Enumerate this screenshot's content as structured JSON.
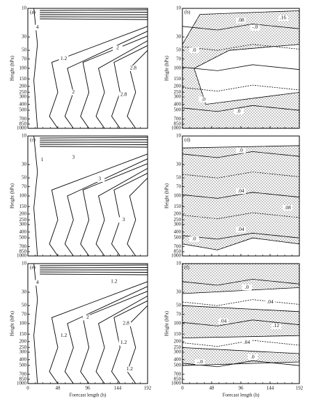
{
  "chart_data": [
    {
      "type": "contour",
      "panel": "(a)",
      "ylabel": "Height (hPa)",
      "shading": false,
      "xlim": [
        0,
        192
      ],
      "xticks": [
        0,
        48,
        96,
        144,
        192
      ],
      "ylim": [
        1000,
        10
      ],
      "log_y": true,
      "yticks": [
        10,
        30,
        50,
        70,
        100,
        150,
        200,
        250,
        300,
        400,
        500,
        700,
        850,
        1000
      ],
      "contour_labels": [
        {
          "value": 4,
          "label": "4"
        },
        {
          "value": 1.2,
          "label": "1.2"
        },
        {
          "value": 2,
          "label": "2"
        },
        {
          "value": 2.8,
          "label": "2.8"
        },
        {
          "value": 2,
          "label": "2"
        },
        {
          "value": 2.8,
          "label": "2.8"
        }
      ]
    },
    {
      "type": "contour",
      "panel": "(b)",
      "ylabel": "Height (hPa)",
      "shading": true,
      "xlim": [
        0,
        192
      ],
      "xticks": [
        0,
        48,
        96,
        144,
        192
      ],
      "ylim": [
        1000,
        10
      ],
      "log_y": true,
      "yticks": [
        10,
        30,
        50,
        70,
        100,
        150,
        200,
        250,
        300,
        400,
        500,
        700,
        850,
        1000
      ],
      "contour_labels": [
        {
          "value": 0.16,
          "label": ".16"
        },
        {
          "value": 0.08,
          "label": ".08"
        },
        {
          "value": 0,
          "label": "-.0"
        },
        {
          "value": 0,
          "label": ".0"
        },
        {
          "value": 0,
          "label": ".0"
        },
        {
          "value": 0,
          "label": ".0"
        }
      ]
    },
    {
      "type": "contour",
      "panel": "(c)",
      "ylabel": "Height (hPa)",
      "shading": false,
      "xlim": [
        0,
        192
      ],
      "xticks": [
        0,
        48,
        96,
        144,
        192
      ],
      "ylim": [
        1000,
        10
      ],
      "log_y": true,
      "yticks": [
        10,
        30,
        50,
        70,
        100,
        150,
        200,
        250,
        300,
        400,
        500,
        700,
        850,
        1000
      ],
      "contour_labels": [
        {
          "value": 1,
          "label": "1"
        },
        {
          "value": 3,
          "label": "3"
        },
        {
          "value": 3,
          "label": "3"
        },
        {
          "value": 3,
          "label": "3"
        }
      ]
    },
    {
      "type": "contour",
      "panel": "(d)",
      "ylabel": "Height (hPa)",
      "shading": true,
      "xlim": [
        0,
        192
      ],
      "xticks": [
        0,
        48,
        96,
        144,
        192
      ],
      "ylim": [
        1000,
        10
      ],
      "log_y": true,
      "yticks": [
        10,
        30,
        50,
        70,
        100,
        150,
        200,
        250,
        300,
        400,
        500,
        700,
        850,
        1000
      ],
      "contour_labels": [
        {
          "value": 0,
          "label": ".0"
        },
        {
          "value": 0.04,
          "label": ".04"
        },
        {
          "value": 0.08,
          "label": ".08"
        },
        {
          "value": 0.04,
          "label": ".04"
        },
        {
          "value": 0,
          "label": ".0"
        }
      ]
    },
    {
      "type": "contour",
      "panel": "(e)",
      "ylabel": "Height (hPa)",
      "xlabel": "Forecast length (h)",
      "shading": false,
      "xlim": [
        0,
        192
      ],
      "xticks": [
        0,
        48,
        96,
        144,
        192
      ],
      "ylim": [
        1000,
        10
      ],
      "log_y": true,
      "yticks": [
        10,
        30,
        50,
        70,
        100,
        150,
        200,
        250,
        300,
        400,
        500,
        700,
        850,
        1000
      ],
      "contour_labels": [
        {
          "value": 4,
          "label": "4"
        },
        {
          "value": 1.2,
          "label": "1.2"
        },
        {
          "value": 2,
          "label": "2"
        },
        {
          "value": 2.8,
          "label": "2.8"
        },
        {
          "value": 1.2,
          "label": "1.2"
        },
        {
          "value": 1.2,
          "label": "1.2"
        },
        {
          "value": 1.2,
          "label": "1.2"
        }
      ]
    },
    {
      "type": "contour",
      "panel": "(f)",
      "ylabel": "Height (hPa)",
      "xlabel": "Forecast length (h)",
      "shading": true,
      "xlim": [
        0,
        192
      ],
      "xticks": [
        0,
        48,
        96,
        144,
        192
      ],
      "ylim": [
        1000,
        10
      ],
      "log_y": true,
      "yticks": [
        10,
        30,
        50,
        70,
        100,
        150,
        200,
        250,
        300,
        400,
        500,
        700,
        850,
        1000
      ],
      "contour_labels": [
        {
          "value": 0,
          "label": ".0"
        },
        {
          "value": 0.04,
          "label": ".04"
        },
        {
          "value": 0.04,
          "label": ".04"
        },
        {
          "value": 0.12,
          "label": ".12"
        },
        {
          "value": 0.04,
          "label": ".04"
        },
        {
          "value": 0,
          "label": "-.0"
        },
        {
          "value": 0,
          "label": ".0"
        }
      ]
    }
  ]
}
